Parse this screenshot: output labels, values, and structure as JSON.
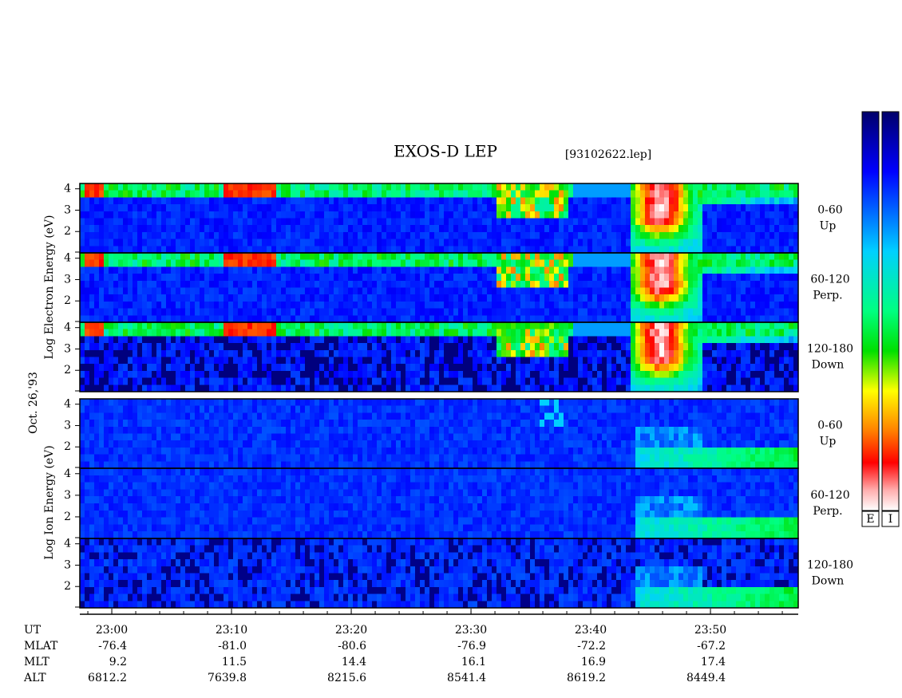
{
  "title": "EXOS-D LEP",
  "file": "[93102622.lep]",
  "date": "Oct. 26,'93",
  "electron": {
    "axis_label": "Log Electron Energy (eV)",
    "panels": [
      {
        "angle": "0-60",
        "direction": "Up"
      },
      {
        "angle": "60-120",
        "direction": "Perp."
      },
      {
        "angle": "120-180",
        "direction": "Down"
      }
    ]
  },
  "ion": {
    "axis_label": "Log Ion Energy (eV)",
    "panels": [
      {
        "angle": "0-60",
        "direction": "Up"
      },
      {
        "angle": "60-120",
        "direction": "Perp."
      },
      {
        "angle": "120-180",
        "direction": "Down"
      }
    ]
  },
  "ylim": [
    1,
    4.25
  ],
  "yticks": [
    2,
    3,
    4
  ],
  "xlim": [
    1377.33,
    1437.33
  ],
  "xticks": [
    {
      "value": 1380,
      "label": "23:00"
    },
    {
      "value": 1390,
      "label": "23:10"
    },
    {
      "value": 1400,
      "label": "23:20"
    },
    {
      "value": 1410,
      "label": "23:30"
    },
    {
      "value": 1420,
      "label": "23:40"
    },
    {
      "value": 1430,
      "label": "23:50"
    }
  ],
  "ephemeris": [
    {
      "name": "UT"
    },
    {
      "name": "MLAT",
      "values": [
        "-76.4",
        "-81.0",
        "-80.6",
        "-76.9",
        "-72.2",
        "-67.2"
      ]
    },
    {
      "name": "MLT",
      "values": [
        "9.2",
        "11.5",
        "14.4",
        "16.1",
        "16.9",
        "17.4"
      ]
    },
    {
      "name": "ALT",
      "values": [
        "6812.2",
        "7639.8",
        "8215.6",
        "8541.4",
        "8619.2",
        "8449.4"
      ]
    }
  ],
  "colorbars": [
    "E",
    "I"
  ]
}
